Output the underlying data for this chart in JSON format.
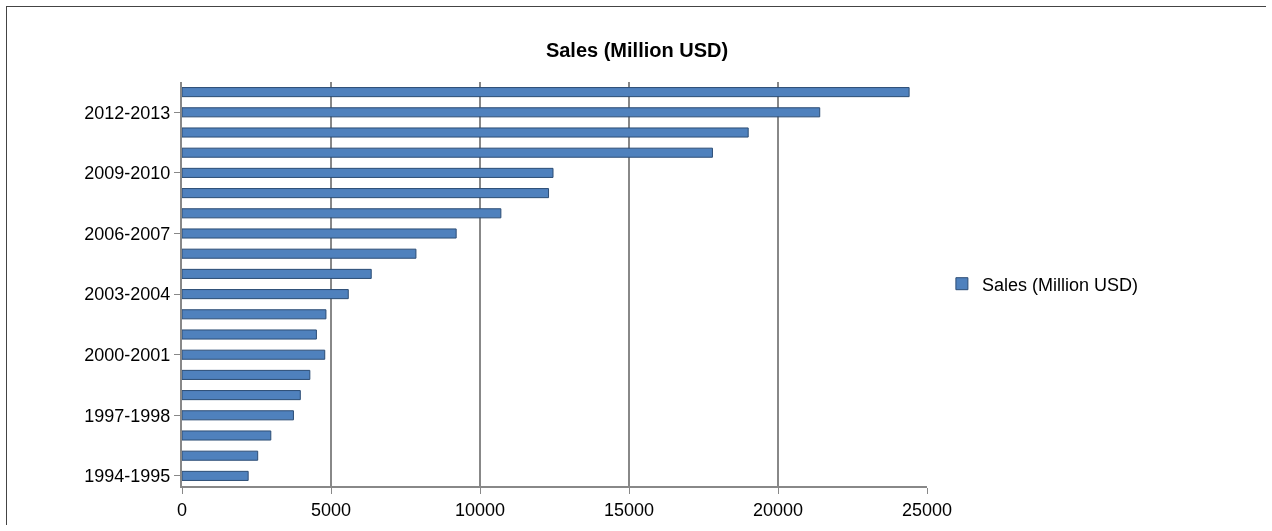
{
  "chart_data": {
    "type": "bar",
    "orientation": "horizontal",
    "title": "Sales (Million USD)",
    "categories": [
      null,
      "2012-2013",
      null,
      null,
      "2009-2010",
      null,
      null,
      "2006-2007",
      null,
      null,
      "2003-2004",
      null,
      null,
      "2000-2001",
      null,
      null,
      "1997-1998",
      null,
      null,
      "1994-1995"
    ],
    "series": [
      {
        "name": "Sales (Million USD)",
        "color": "#4f81bd",
        "values": [
          24400,
          21400,
          19000,
          17800,
          12450,
          12300,
          10700,
          9200,
          7850,
          6350,
          5580,
          4830,
          4510,
          4790,
          4290,
          3970,
          3740,
          2980,
          2540,
          2220
        ]
      }
    ],
    "xlim": [
      0,
      25000
    ],
    "xticks": [
      0,
      5000,
      10000,
      15000,
      20000,
      25000
    ],
    "grid": "x",
    "legend": "right"
  }
}
